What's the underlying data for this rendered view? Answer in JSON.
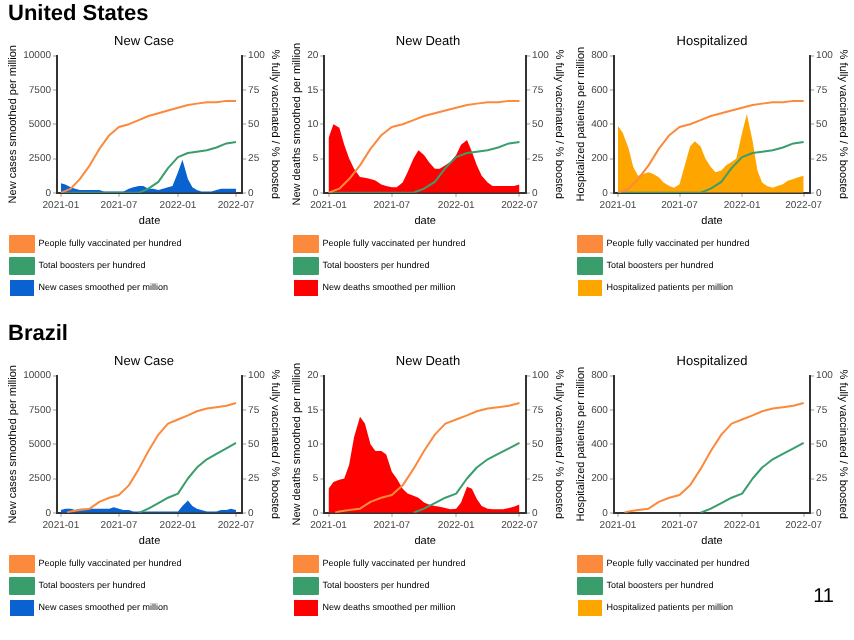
{
  "chart_data": [
    {
      "type": "other",
      "title": "United States"
    },
    {
      "type": "area",
      "title": "New Case",
      "xlabel": "date",
      "ylabel": "New cases smoothed per million",
      "y2label": "% fully vaccinated / % boosted",
      "x": [
        "2021-01-01",
        "2021-01-15",
        "2021-02-01",
        "2021-02-15",
        "2021-03-01",
        "2021-03-15",
        "2021-04-01",
        "2021-04-15",
        "2021-05-01",
        "2021-05-15",
        "2021-06-01",
        "2021-06-15",
        "2021-07-01",
        "2021-07-15",
        "2021-08-01",
        "2021-08-15",
        "2021-09-01",
        "2021-09-15",
        "2021-10-01",
        "2021-10-15",
        "2021-11-01",
        "2021-11-15",
        "2021-12-01",
        "2021-12-15",
        "2022-01-01",
        "2022-01-15",
        "2022-02-01",
        "2022-02-15",
        "2022-03-01",
        "2022-03-15",
        "2022-04-01",
        "2022-04-15",
        "2022-05-01",
        "2022-05-15",
        "2022-06-01",
        "2022-06-15",
        "2022-07-01"
      ],
      "xlim": [
        "2020-12-20",
        "2022-07-20"
      ],
      "xticks": [
        "2021-01",
        "2021-07",
        "2022-01",
        "2022-07"
      ],
      "ylim": [
        0,
        10000
      ],
      "yticks": [
        0,
        2500,
        5000,
        7500,
        10000
      ],
      "y2lim": [
        0,
        100
      ],
      "y2ticks": [
        0,
        25,
        50,
        75,
        100
      ],
      "legend": "bottom",
      "marker": "none",
      "series": [
        {
          "name": "People fully vaccinated per hundred",
          "type": "line",
          "axis": "y2",
          "color": "#fb8a3c",
          "x": [
            "2021-01-01",
            "2021-02-01",
            "2021-03-01",
            "2021-04-01",
            "2021-05-01",
            "2021-06-01",
            "2021-07-01",
            "2021-08-01",
            "2021-09-01",
            "2021-10-01",
            "2021-11-01",
            "2021-12-01",
            "2022-01-01",
            "2022-02-01",
            "2022-03-01",
            "2022-04-01",
            "2022-05-01",
            "2022-06-01",
            "2022-07-01"
          ],
          "values": [
            0,
            3,
            10,
            20,
            32,
            42,
            48,
            50,
            53,
            56,
            58,
            60,
            62,
            64,
            65,
            66,
            66,
            67,
            67
          ]
        },
        {
          "name": "Total boosters per hundred",
          "type": "line",
          "axis": "y2",
          "color": "#3a9d6c",
          "x": [
            "2021-01-01",
            "2021-02-01",
            "2021-03-01",
            "2021-04-01",
            "2021-05-01",
            "2021-06-01",
            "2021-07-01",
            "2021-08-01",
            "2021-09-01",
            "2021-10-01",
            "2021-11-01",
            "2021-12-01",
            "2022-01-01",
            "2022-02-01",
            "2022-03-01",
            "2022-04-01",
            "2022-05-01",
            "2022-06-01",
            "2022-07-01"
          ],
          "values": [
            0,
            0,
            0,
            0,
            0,
            0,
            0,
            0,
            0,
            3,
            8,
            18,
            26,
            29,
            30,
            31,
            33,
            36,
            37
          ]
        },
        {
          "name": "New cases smoothed per million",
          "type": "area",
          "axis": "y",
          "color": "#0a62d0",
          "values": [
            700,
            600,
            400,
            300,
            200,
            200,
            200,
            200,
            200,
            100,
            100,
            100,
            100,
            100,
            300,
            400,
            500,
            500,
            300,
            300,
            200,
            300,
            400,
            500,
            1500,
            2400,
            1000,
            400,
            200,
            100,
            100,
            100,
            200,
            300,
            300,
            300,
            300
          ]
        }
      ]
    },
    {
      "type": "area",
      "title": "New Death",
      "xlabel": "date",
      "ylabel": "New deaths smoothed per million",
      "y2label": "% fully vaccinated / % boosted",
      "x": [
        "2021-01-01",
        "2021-01-15",
        "2021-02-01",
        "2021-02-15",
        "2021-03-01",
        "2021-03-15",
        "2021-04-01",
        "2021-04-15",
        "2021-05-01",
        "2021-05-15",
        "2021-06-01",
        "2021-06-15",
        "2021-07-01",
        "2021-07-15",
        "2021-08-01",
        "2021-08-15",
        "2021-09-01",
        "2021-09-15",
        "2021-10-01",
        "2021-10-15",
        "2021-11-01",
        "2021-11-15",
        "2021-12-01",
        "2021-12-15",
        "2022-01-01",
        "2022-01-15",
        "2022-02-01",
        "2022-02-15",
        "2022-03-01",
        "2022-03-15",
        "2022-04-01",
        "2022-04-15",
        "2022-05-01",
        "2022-05-15",
        "2022-06-01",
        "2022-06-15",
        "2022-07-01"
      ],
      "xlim": [
        "2020-12-20",
        "2022-07-20"
      ],
      "xticks": [
        "2021-01",
        "2021-07",
        "2022-01",
        "2022-07"
      ],
      "ylim": [
        0,
        20
      ],
      "yticks": [
        0,
        5,
        10,
        15,
        20
      ],
      "y2lim": [
        0,
        100
      ],
      "y2ticks": [
        0,
        25,
        50,
        75,
        100
      ],
      "legend": "bottom",
      "marker": "none",
      "series": [
        {
          "name": "People fully vaccinated per hundred",
          "type": "line",
          "axis": "y2",
          "color": "#fb8a3c",
          "x": [
            "2021-01-01",
            "2021-02-01",
            "2021-03-01",
            "2021-04-01",
            "2021-05-01",
            "2021-06-01",
            "2021-07-01",
            "2021-08-01",
            "2021-09-01",
            "2021-10-01",
            "2021-11-01",
            "2021-12-01",
            "2022-01-01",
            "2022-02-01",
            "2022-03-01",
            "2022-04-01",
            "2022-05-01",
            "2022-06-01",
            "2022-07-01"
          ],
          "values": [
            0,
            3,
            10,
            20,
            32,
            42,
            48,
            50,
            53,
            56,
            58,
            60,
            62,
            64,
            65,
            66,
            66,
            67,
            67
          ]
        },
        {
          "name": "Total boosters per hundred",
          "type": "line",
          "axis": "y2",
          "color": "#3a9d6c",
          "x": [
            "2021-01-01",
            "2021-02-01",
            "2021-03-01",
            "2021-04-01",
            "2021-05-01",
            "2021-06-01",
            "2021-07-01",
            "2021-08-01",
            "2021-09-01",
            "2021-10-01",
            "2021-11-01",
            "2021-12-01",
            "2022-01-01",
            "2022-02-01",
            "2022-03-01",
            "2022-04-01",
            "2022-05-01",
            "2022-06-01",
            "2022-07-01"
          ],
          "values": [
            0,
            0,
            0,
            0,
            0,
            0,
            0,
            0,
            0,
            3,
            8,
            18,
            26,
            29,
            30,
            31,
            33,
            36,
            37
          ]
        },
        {
          "name": "New deaths smoothed per million",
          "type": "area",
          "axis": "y",
          "color": "#ff0000",
          "values": [
            8,
            10,
            9.5,
            7,
            5,
            3.5,
            2.3,
            2.2,
            2,
            1.8,
            1.2,
            1,
            0.8,
            0.8,
            1.5,
            3,
            5,
            6.2,
            5.5,
            4.5,
            3.5,
            3.5,
            4,
            4.5,
            5.5,
            7,
            7.7,
            6,
            4,
            2.5,
            1.5,
            1,
            1,
            1,
            1,
            1,
            1.2
          ]
        }
      ]
    },
    {
      "type": "area",
      "title": "Hospitalized",
      "xlabel": "date",
      "ylabel": "Hospitalized patients per million",
      "y2label": "% fully vaccinated / % boosted",
      "x": [
        "2021-01-01",
        "2021-01-15",
        "2021-02-01",
        "2021-02-15",
        "2021-03-01",
        "2021-03-15",
        "2021-04-01",
        "2021-04-15",
        "2021-05-01",
        "2021-05-15",
        "2021-06-01",
        "2021-06-15",
        "2021-07-01",
        "2021-07-15",
        "2021-08-01",
        "2021-08-15",
        "2021-09-01",
        "2021-09-15",
        "2021-10-01",
        "2021-10-15",
        "2021-11-01",
        "2021-11-15",
        "2021-12-01",
        "2021-12-15",
        "2022-01-01",
        "2022-01-15",
        "2022-02-01",
        "2022-02-15",
        "2022-03-01",
        "2022-03-15",
        "2022-04-01",
        "2022-04-15",
        "2022-05-01",
        "2022-05-15",
        "2022-06-01",
        "2022-06-15",
        "2022-07-01"
      ],
      "xlim": [
        "2020-12-20",
        "2022-07-20"
      ],
      "xticks": [
        "2021-01",
        "2021-07",
        "2022-01",
        "2022-07"
      ],
      "ylim": [
        0,
        800
      ],
      "yticks": [
        0,
        200,
        400,
        600,
        800
      ],
      "y2lim": [
        0,
        100
      ],
      "y2ticks": [
        0,
        25,
        50,
        75,
        100
      ],
      "legend": "bottom",
      "marker": "none",
      "series": [
        {
          "name": "People fully vaccinated per hundred",
          "type": "line",
          "axis": "y2",
          "color": "#fb8a3c",
          "x": [
            "2021-01-01",
            "2021-02-01",
            "2021-03-01",
            "2021-04-01",
            "2021-05-01",
            "2021-06-01",
            "2021-07-01",
            "2021-08-01",
            "2021-09-01",
            "2021-10-01",
            "2021-11-01",
            "2021-12-01",
            "2022-01-01",
            "2022-02-01",
            "2022-03-01",
            "2022-04-01",
            "2022-05-01",
            "2022-06-01",
            "2022-07-01"
          ],
          "values": [
            0,
            3,
            10,
            20,
            32,
            42,
            48,
            50,
            53,
            56,
            58,
            60,
            62,
            64,
            65,
            66,
            66,
            67,
            67
          ]
        },
        {
          "name": "Total boosters per hundred",
          "type": "line",
          "axis": "y2",
          "color": "#3a9d6c",
          "x": [
            "2021-01-01",
            "2021-02-01",
            "2021-03-01",
            "2021-04-01",
            "2021-05-01",
            "2021-06-01",
            "2021-07-01",
            "2021-08-01",
            "2021-09-01",
            "2021-10-01",
            "2021-11-01",
            "2021-12-01",
            "2022-01-01",
            "2022-02-01",
            "2022-03-01",
            "2022-04-01",
            "2022-05-01",
            "2022-06-01",
            "2022-07-01"
          ],
          "values": [
            0,
            0,
            0,
            0,
            0,
            0,
            0,
            0,
            0,
            3,
            8,
            18,
            26,
            29,
            30,
            31,
            33,
            36,
            37
          ]
        },
        {
          "name": "Hospitalized patients per million",
          "type": "area",
          "axis": "y",
          "color": "#ffa500",
          "values": [
            390,
            350,
            260,
            150,
            100,
            110,
            120,
            110,
            90,
            60,
            40,
            30,
            50,
            150,
            270,
            300,
            270,
            200,
            150,
            120,
            130,
            160,
            180,
            200,
            350,
            460,
            300,
            130,
            60,
            40,
            30,
            40,
            50,
            70,
            80,
            90,
            100
          ]
        }
      ]
    },
    {
      "type": "other",
      "title": "Brazil"
    },
    {
      "type": "area",
      "title": "New Case",
      "xlabel": "date",
      "ylabel": "New cases smoothed per million",
      "y2label": "% fully vaccinated / % boosted",
      "x": [
        "2021-01-01",
        "2021-01-15",
        "2021-02-01",
        "2021-02-15",
        "2021-03-01",
        "2021-03-15",
        "2021-04-01",
        "2021-04-15",
        "2021-05-01",
        "2021-05-15",
        "2021-06-01",
        "2021-06-15",
        "2021-07-01",
        "2021-07-15",
        "2021-08-01",
        "2021-08-15",
        "2021-09-01",
        "2021-09-15",
        "2021-10-01",
        "2021-10-15",
        "2021-11-01",
        "2021-11-15",
        "2021-12-01",
        "2021-12-15",
        "2022-01-01",
        "2022-01-15",
        "2022-02-01",
        "2022-02-15",
        "2022-03-01",
        "2022-03-15",
        "2022-04-01",
        "2022-04-15",
        "2022-05-01",
        "2022-05-15",
        "2022-06-01",
        "2022-06-15",
        "2022-07-01"
      ],
      "xlim": [
        "2020-12-20",
        "2022-07-20"
      ],
      "xticks": [
        "2021-01",
        "2021-07",
        "2022-01",
        "2022-07"
      ],
      "ylim": [
        0,
        10000
      ],
      "yticks": [
        0,
        2500,
        5000,
        7500,
        10000
      ],
      "y2lim": [
        0,
        100
      ],
      "y2ticks": [
        0,
        25,
        50,
        75,
        100
      ],
      "legend": "bottom",
      "marker": "none",
      "series": [
        {
          "name": "People fully vaccinated per hundred",
          "type": "line",
          "axis": "y2",
          "color": "#fb8a3c",
          "x": [
            "2021-01-20",
            "2021-02-01",
            "2021-03-01",
            "2021-04-01",
            "2021-05-01",
            "2021-06-01",
            "2021-07-01",
            "2021-08-01",
            "2021-09-01",
            "2021-10-01",
            "2021-11-01",
            "2021-12-01",
            "2022-01-01",
            "2022-02-01",
            "2022-03-01",
            "2022-04-01",
            "2022-05-01",
            "2022-06-01",
            "2022-07-01"
          ],
          "values": [
            0,
            1,
            2,
            3,
            8,
            11,
            13,
            20,
            32,
            45,
            57,
            65,
            68,
            71,
            74,
            76,
            77,
            78,
            80
          ]
        },
        {
          "name": "Total boosters per hundred",
          "type": "line",
          "axis": "y2",
          "color": "#3a9d6c",
          "x": [
            "2021-09-01",
            "2021-10-01",
            "2021-11-01",
            "2021-12-01",
            "2022-01-01",
            "2022-02-01",
            "2022-03-01",
            "2022-04-01",
            "2022-05-01",
            "2022-06-01",
            "2022-07-01"
          ],
          "values": [
            0,
            3,
            7,
            11,
            14,
            25,
            33,
            39,
            43,
            47,
            51
          ]
        },
        {
          "name": "New cases smoothed per million",
          "type": "area",
          "axis": "y",
          "color": "#0a62d0",
          "values": [
            200,
            300,
            300,
            200,
            300,
            300,
            300,
            300,
            300,
            300,
            300,
            400,
            300,
            200,
            200,
            100,
            100,
            100,
            100,
            100,
            100,
            100,
            100,
            100,
            100,
            500,
            900,
            500,
            300,
            200,
            100,
            100,
            100,
            200,
            200,
            300,
            200
          ]
        }
      ]
    },
    {
      "type": "area",
      "title": "New Death",
      "xlabel": "date",
      "ylabel": "New deaths smoothed per million",
      "y2label": "% fully vaccinated / % boosted",
      "x": [
        "2021-01-01",
        "2021-01-15",
        "2021-02-01",
        "2021-02-15",
        "2021-03-01",
        "2021-03-15",
        "2021-04-01",
        "2021-04-15",
        "2021-05-01",
        "2021-05-15",
        "2021-06-01",
        "2021-06-15",
        "2021-07-01",
        "2021-07-15",
        "2021-08-01",
        "2021-08-15",
        "2021-09-01",
        "2021-09-15",
        "2021-10-01",
        "2021-10-15",
        "2021-11-01",
        "2021-11-15",
        "2021-12-01",
        "2021-12-15",
        "2022-01-01",
        "2022-01-15",
        "2022-02-01",
        "2022-02-15",
        "2022-03-01",
        "2022-03-15",
        "2022-04-01",
        "2022-04-15",
        "2022-05-01",
        "2022-05-15",
        "2022-06-01",
        "2022-06-15",
        "2022-07-01"
      ],
      "xlim": [
        "2020-12-20",
        "2022-07-20"
      ],
      "xticks": [
        "2021-01",
        "2021-07",
        "2022-01",
        "2022-07"
      ],
      "ylim": [
        0,
        20
      ],
      "yticks": [
        0,
        5,
        10,
        15,
        20
      ],
      "y2lim": [
        0,
        100
      ],
      "y2ticks": [
        0,
        25,
        50,
        75,
        100
      ],
      "legend": "bottom",
      "marker": "none",
      "series": [
        {
          "name": "People fully vaccinated per hundred",
          "type": "line",
          "axis": "y2",
          "color": "#fb8a3c",
          "x": [
            "2021-01-20",
            "2021-02-01",
            "2021-03-01",
            "2021-04-01",
            "2021-05-01",
            "2021-06-01",
            "2021-07-01",
            "2021-08-01",
            "2021-09-01",
            "2021-10-01",
            "2021-11-01",
            "2021-12-01",
            "2022-01-01",
            "2022-02-01",
            "2022-03-01",
            "2022-04-01",
            "2022-05-01",
            "2022-06-01",
            "2022-07-01"
          ],
          "values": [
            0,
            1,
            2,
            3,
            8,
            11,
            13,
            20,
            32,
            45,
            57,
            65,
            68,
            71,
            74,
            76,
            77,
            78,
            80
          ]
        },
        {
          "name": "Total boosters per hundred",
          "type": "line",
          "axis": "y2",
          "color": "#3a9d6c",
          "x": [
            "2021-09-01",
            "2021-10-01",
            "2021-11-01",
            "2021-12-01",
            "2022-01-01",
            "2022-02-01",
            "2022-03-01",
            "2022-04-01",
            "2022-05-01",
            "2022-06-01",
            "2022-07-01"
          ],
          "values": [
            0,
            3,
            7,
            11,
            14,
            25,
            33,
            39,
            43,
            47,
            51
          ]
        },
        {
          "name": "New deaths smoothed per million",
          "type": "area",
          "axis": "y",
          "color": "#ff0000",
          "values": [
            3.5,
            4.5,
            4.8,
            5,
            7,
            11,
            14,
            13,
            10,
            9,
            9,
            8.5,
            6,
            5,
            3.5,
            2.8,
            2.5,
            2.2,
            1.5,
            1.2,
            1,
            0.9,
            0.7,
            0.5,
            0.6,
            1.5,
            3.8,
            3.5,
            2,
            1,
            0.6,
            0.5,
            0.5,
            0.5,
            0.7,
            0.9,
            1.2
          ]
        }
      ]
    },
    {
      "type": "area",
      "title": "Hospitalized",
      "xlabel": "date",
      "ylabel": "Hospitalized patients per million",
      "y2label": "% fully vaccinated / % boosted",
      "xlim": [
        "2020-12-20",
        "2022-07-20"
      ],
      "xticks": [
        "2021-01",
        "2021-07",
        "2022-01",
        "2022-07"
      ],
      "ylim": [
        0,
        800
      ],
      "yticks": [
        0,
        200,
        400,
        600,
        800
      ],
      "y2lim": [
        0,
        100
      ],
      "y2ticks": [
        0,
        25,
        50,
        75,
        100
      ],
      "legend": "bottom",
      "marker": "none",
      "series": [
        {
          "name": "People fully vaccinated per hundred",
          "type": "line",
          "axis": "y2",
          "color": "#fb8a3c",
          "x": [
            "2021-01-20",
            "2021-02-01",
            "2021-03-01",
            "2021-04-01",
            "2021-05-01",
            "2021-06-01",
            "2021-07-01",
            "2021-08-01",
            "2021-09-01",
            "2021-10-01",
            "2021-11-01",
            "2021-12-01",
            "2022-01-01",
            "2022-02-01",
            "2022-03-01",
            "2022-04-01",
            "2022-05-01",
            "2022-06-01",
            "2022-07-01"
          ],
          "values": [
            0,
            1,
            2,
            3,
            8,
            11,
            13,
            20,
            32,
            45,
            57,
            65,
            68,
            71,
            74,
            76,
            77,
            78,
            80
          ]
        },
        {
          "name": "Total boosters per hundred",
          "type": "line",
          "axis": "y2",
          "color": "#3a9d6c",
          "x": [
            "2021-09-01",
            "2021-10-01",
            "2021-11-01",
            "2021-12-01",
            "2022-01-01",
            "2022-02-01",
            "2022-03-01",
            "2022-04-01",
            "2022-05-01",
            "2022-06-01",
            "2022-07-01"
          ],
          "values": [
            0,
            3,
            7,
            11,
            14,
            25,
            33,
            39,
            43,
            47,
            51
          ]
        },
        {
          "name": "Hospitalized patients per million",
          "type": "area",
          "axis": "y",
          "color": "#ffa500"
        }
      ]
    },
    {
      "type": "other",
      "annotations": [
        "11"
      ]
    }
  ]
}
